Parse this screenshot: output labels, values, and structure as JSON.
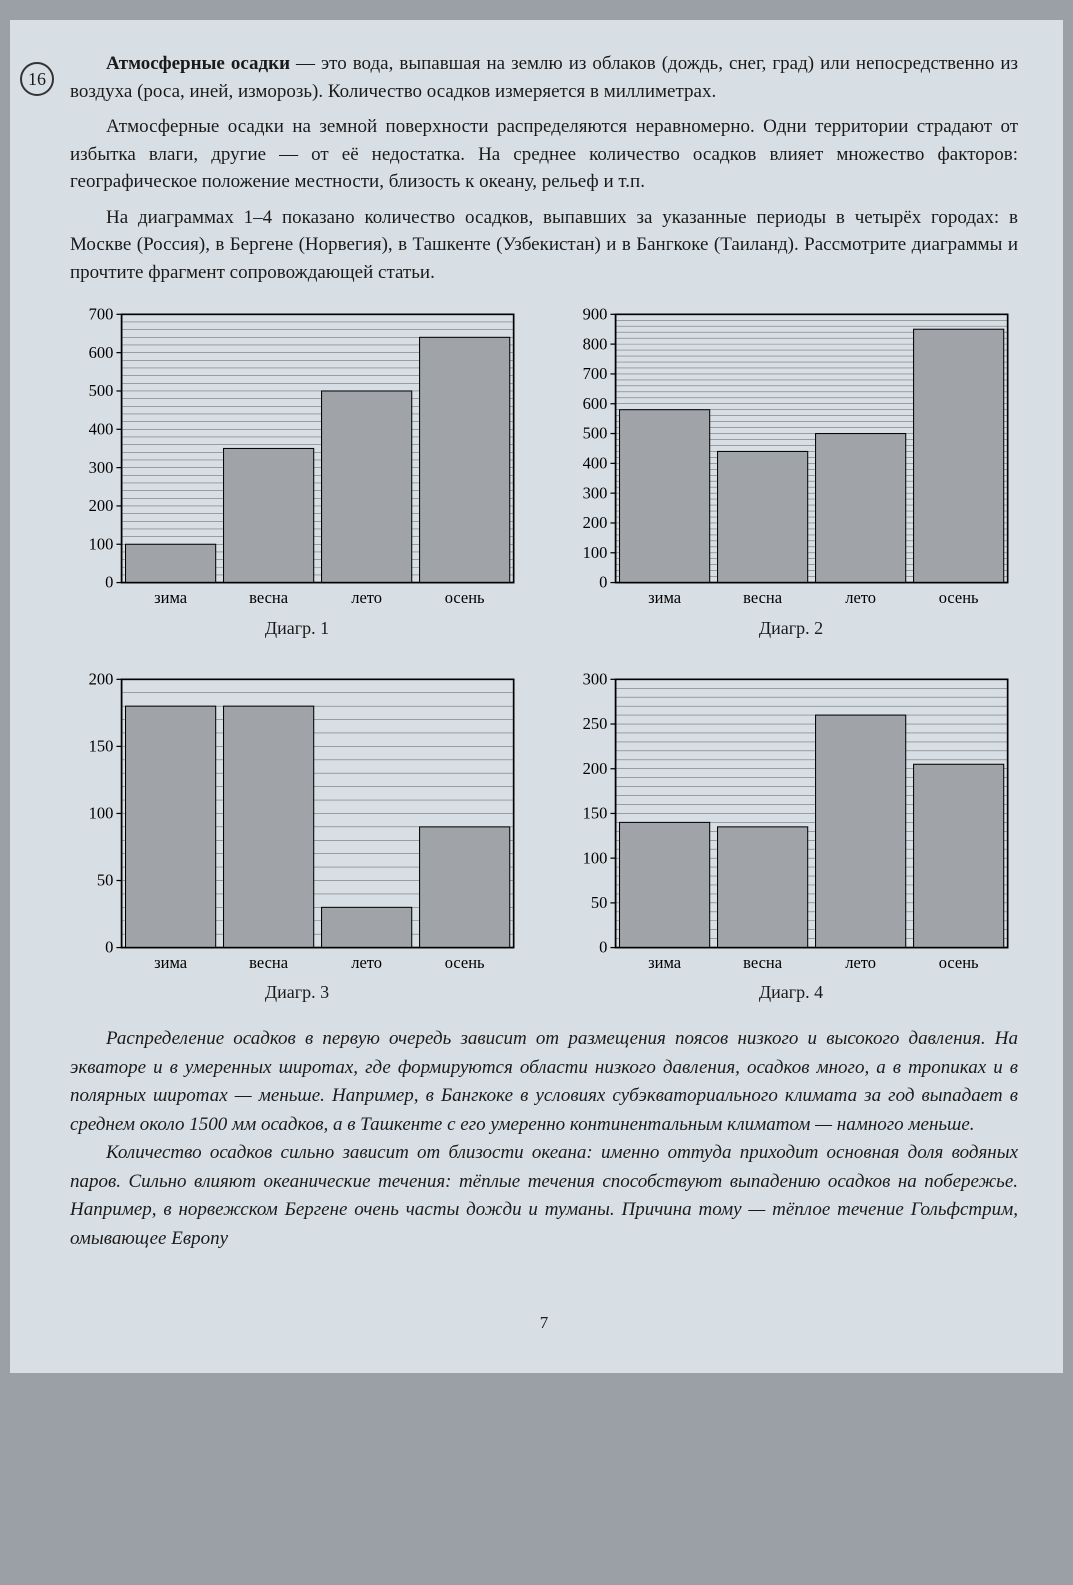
{
  "task_number": "16",
  "paragraphs": {
    "p1a": "Атмосферные осадки",
    "p1b": " — это вода, выпавшая на землю из облаков (дождь, снег, град) или непосредственно из воздуха (роса, иней, изморозь). Количество осадков измеряется в миллиметрах.",
    "p2": "Атмосферные осадки на земной поверхности распределяются неравномерно. Одни территории страдают от избытка влаги, другие — от её недостатка. На среднее количество осадков влияет множество факторов: географическое положение местности, близость к океану, рельеф и т.п.",
    "p3": "На диаграммах 1–4 показано количество осадков, выпавших за указанные периоды в четырёх городах: в Москве (Россия), в Бергене (Норвегия), в Ташкенте (Узбекистан) и в Бангкоке (Таиланд). Рассмотрите диаграммы и прочтите фрагмент сопровождающей статьи."
  },
  "charts": [
    {
      "caption": "Диагр. 1",
      "type": "bar",
      "categories": [
        "зима",
        "весна",
        "лето",
        "осень"
      ],
      "values": [
        100,
        350,
        500,
        640
      ],
      "ymax": 700,
      "ytick_step": 100,
      "bar_color": "#a0a4a8",
      "grid_color": "#4a4a4a",
      "axis_color": "#000000",
      "bg_color": "#d8dfe4",
      "label_fontsize": 16
    },
    {
      "caption": "Диагр. 2",
      "type": "bar",
      "categories": [
        "зима",
        "весна",
        "лето",
        "осень"
      ],
      "values": [
        580,
        440,
        500,
        850
      ],
      "ymax": 900,
      "ytick_step": 100,
      "bar_color": "#a0a4a8",
      "grid_color": "#4a4a4a",
      "axis_color": "#000000",
      "bg_color": "#d8dfe4",
      "label_fontsize": 16
    },
    {
      "caption": "Диагр. 3",
      "type": "bar",
      "categories": [
        "зима",
        "весна",
        "лето",
        "осень"
      ],
      "values": [
        180,
        180,
        30,
        90
      ],
      "ymax": 200,
      "ytick_step": 50,
      "bar_color": "#a0a4a8",
      "grid_color": "#4a4a4a",
      "axis_color": "#000000",
      "bg_color": "#d8dfe4",
      "label_fontsize": 16
    },
    {
      "caption": "Диагр. 4",
      "type": "bar",
      "categories": [
        "зима",
        "весна",
        "лето",
        "осень"
      ],
      "values": [
        140,
        135,
        260,
        205
      ],
      "ymax": 300,
      "ytick_step": 50,
      "bar_color": "#a0a4a8",
      "grid_color": "#4a4a4a",
      "axis_color": "#000000",
      "bg_color": "#d8dfe4",
      "label_fontsize": 16
    }
  ],
  "article": {
    "p1": "Распределение осадков в первую очередь зависит от размещения поясов низкого и высокого давления. На экваторе и в умеренных широтах, где формируются области низкого давления, осадков много, а в тропиках и в полярных широтах — меньше. Например, в Бангкоке в условиях субэкваториального климата за год выпадает в среднем около 1500 мм осадков, а в Ташкенте с его умеренно континентальным климатом — намного меньше.",
    "p2": "Количество осадков сильно зависит от близости океана: именно оттуда приходит основная доля водяных паров. Сильно влияют океанические течения: тёплые течения способствуют выпадению осадков на побережье. Например, в норвежском Бергене очень часты дожди и туманы. Причина тому — тёплое течение Гольфстрим, омывающее Европу"
  },
  "page_number": "7"
}
